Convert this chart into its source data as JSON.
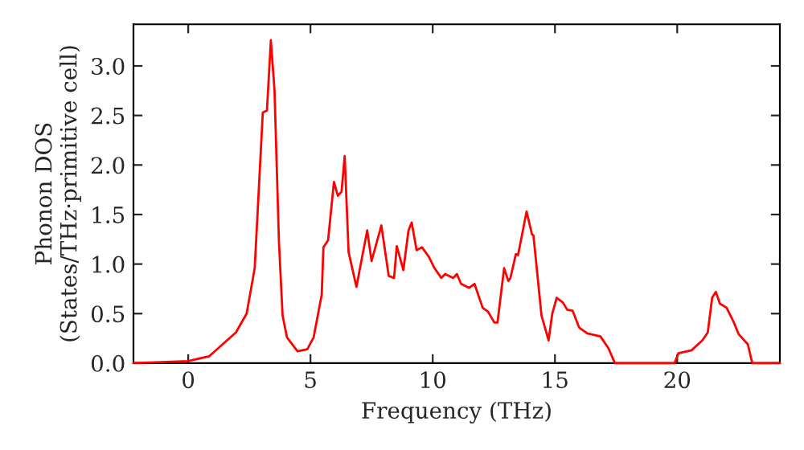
{
  "chart_data": {
    "type": "line",
    "xlabel": "Frequency (THz)",
    "ylabel": "Phonon DOS\n(States/THz·primitive cell)",
    "xlim": [
      -2.24,
      24.2
    ],
    "ylim": [
      0,
      3.42
    ],
    "xticks": [
      0,
      5,
      10,
      15,
      20
    ],
    "yticks": [
      {
        "value": 0,
        "label": "0.0"
      },
      {
        "value": 0.5,
        "label": "0.5"
      },
      {
        "value": 1,
        "label": "1.0"
      },
      {
        "value": 1.5,
        "label": "1.5"
      },
      {
        "value": 2,
        "label": "2.0"
      },
      {
        "value": 2.5,
        "label": "2.5"
      },
      {
        "value": 3,
        "label": "3.0"
      }
    ],
    "grid": false,
    "legend": false,
    "marker": "none",
    "line_style": "solid",
    "series": [
      {
        "color": "#ff0000",
        "x": [
          -2.24,
          0,
          0.86,
          1.95,
          2.39,
          2.72,
          3.05,
          3.22,
          3.38,
          3.53,
          3.71,
          3.86,
          4.04,
          4.47,
          4.87,
          5.13,
          5.46,
          5.53,
          5.72,
          5.96,
          6.12,
          6.27,
          6.4,
          6.56,
          6.88,
          7.32,
          7.5,
          7.9,
          8.2,
          8.42,
          8.53,
          8.8,
          9.01,
          9.14,
          9.34,
          9.56,
          9.85,
          10.07,
          10.35,
          10.51,
          10.84,
          10.99,
          11.16,
          11.49,
          11.71,
          12.04,
          12.26,
          12.52,
          12.65,
          12.92,
          13.09,
          13.18,
          13.4,
          13.49,
          13.84,
          14.06,
          14.12,
          14.45,
          14.74,
          14.89,
          15.07,
          15.33,
          15.5,
          15.72,
          15.99,
          16.32,
          16.86,
          17.19,
          17.45,
          19.89,
          20.05,
          20.59,
          21.03,
          21.25,
          21.43,
          21.58,
          21.75,
          22.02,
          22.3,
          22.52,
          22.89,
          23.07,
          24.2
        ],
        "values": [
          0,
          0.02,
          0.07,
          0.31,
          0.5,
          0.96,
          2.53,
          2.55,
          3.26,
          2.75,
          1.23,
          0.48,
          0.26,
          0.12,
          0.14,
          0.26,
          0.69,
          1.17,
          1.24,
          1.83,
          1.69,
          1.73,
          2.09,
          1.12,
          0.77,
          1.34,
          1.03,
          1.39,
          0.88,
          0.86,
          1.18,
          0.94,
          1.34,
          1.42,
          1.14,
          1.17,
          1.07,
          0.96,
          0.86,
          0.9,
          0.86,
          0.9,
          0.8,
          0.76,
          0.8,
          0.56,
          0.52,
          0.41,
          0.41,
          0.96,
          0.83,
          0.86,
          1.1,
          1.09,
          1.53,
          1.3,
          1.29,
          0.48,
          0.23,
          0.5,
          0.66,
          0.61,
          0.54,
          0.53,
          0.36,
          0.3,
          0.27,
          0.15,
          0,
          0,
          0.1,
          0.13,
          0.23,
          0.31,
          0.66,
          0.72,
          0.6,
          0.56,
          0.42,
          0.29,
          0.19,
          0,
          0
        ]
      }
    ]
  }
}
